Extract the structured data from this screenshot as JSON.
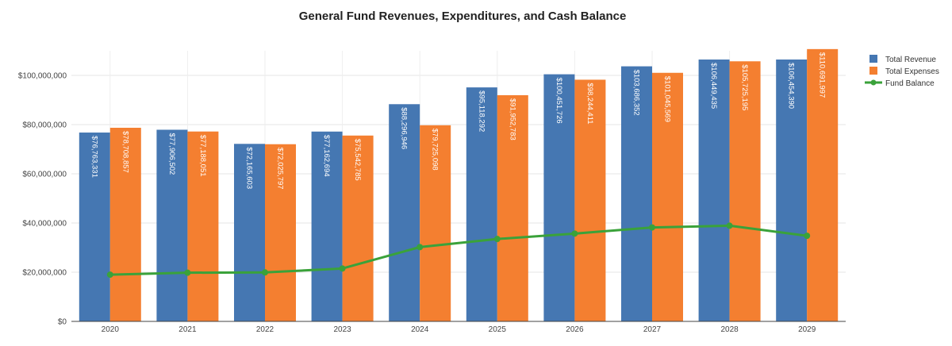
{
  "chart_data": {
    "type": "bar",
    "title": "General Fund Revenues, Expenditures, and Cash Balance",
    "xlabel": "",
    "ylabel": "",
    "categories": [
      "2020",
      "2021",
      "2022",
      "2023",
      "2024",
      "2025",
      "2026",
      "2027",
      "2028",
      "2029"
    ],
    "ylim": [
      0,
      110000000
    ],
    "yticks": [
      0,
      20000000,
      40000000,
      60000000,
      80000000,
      100000000
    ],
    "ytick_labels": [
      "$0",
      "$20,000,000",
      "$40,000,000",
      "$60,000,000",
      "$80,000,000",
      "$100,000,000"
    ],
    "grid": true,
    "legend_position": "top-right",
    "series": [
      {
        "name": "Total Revenue",
        "kind": "bar",
        "color": "#4577b2",
        "values": [
          76763331,
          77906502,
          72165603,
          77162694,
          88296946,
          95118292,
          100451726,
          103686352,
          106449435,
          106454390
        ],
        "labels": [
          "$76,763,331",
          "$77,906,502",
          "$72,165,603",
          "$77,162,694",
          "$88,296,946",
          "$95,118,292",
          "$100,451,726",
          "$103,686,352",
          "$106,449,435",
          "$106,454,390"
        ]
      },
      {
        "name": "Total Expenses",
        "kind": "bar",
        "color": "#f47f30",
        "values": [
          78708857,
          77188051,
          72025797,
          75542785,
          79725098,
          91952783,
          98244411,
          101045569,
          105725195,
          110691997
        ],
        "labels": [
          "$78,708,857",
          "$77,188,051",
          "$72,025,797",
          "$75,542,785",
          "$79,725,098",
          "$91,952,783",
          "$98,244,411",
          "$101,045,569",
          "$105,725,195",
          "$110,691,997"
        ]
      },
      {
        "name": "Fund Balance",
        "kind": "line",
        "color": "#3aa23a",
        "values": [
          19000000,
          19800000,
          19900000,
          21500000,
          30200000,
          33500000,
          35700000,
          38200000,
          38900000,
          34800000
        ]
      }
    ]
  }
}
